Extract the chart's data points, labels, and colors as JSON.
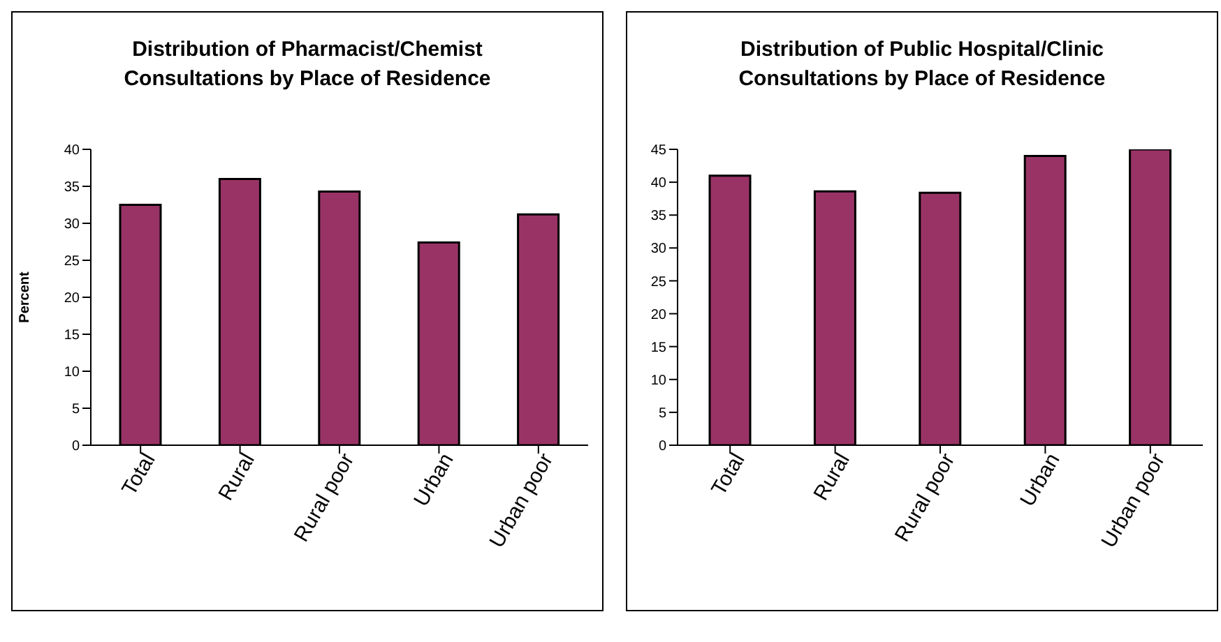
{
  "chart_data": [
    {
      "type": "bar",
      "title": "Distribution of Pharmacist/Chemist Consultations by Place of Residence",
      "ylabel": "Percent",
      "categories": [
        "Total",
        "Rural",
        "Rural poor",
        "Urban",
        "Urban poor"
      ],
      "values": [
        32.5,
        36,
        34.3,
        27.4,
        31.2
      ],
      "color": "#993366",
      "ylim": [
        0,
        40
      ],
      "yticks": [
        0,
        5,
        10,
        15,
        20,
        25,
        30,
        35,
        40
      ],
      "grid": false,
      "legend": false
    },
    {
      "type": "bar",
      "title": "Distribution of Public Hospital/Clinic Consultations by Place of Residence",
      "categories": [
        "Total",
        "Rural",
        "Rural poor",
        "Urban",
        "Urban poor"
      ],
      "values": [
        41,
        38.6,
        38.4,
        44,
        45
      ],
      "color": "#993366",
      "ylim": [
        0,
        45
      ],
      "yticks": [
        0,
        5,
        10,
        15,
        20,
        25,
        30,
        35,
        40,
        45
      ],
      "grid": false,
      "legend": false
    }
  ]
}
